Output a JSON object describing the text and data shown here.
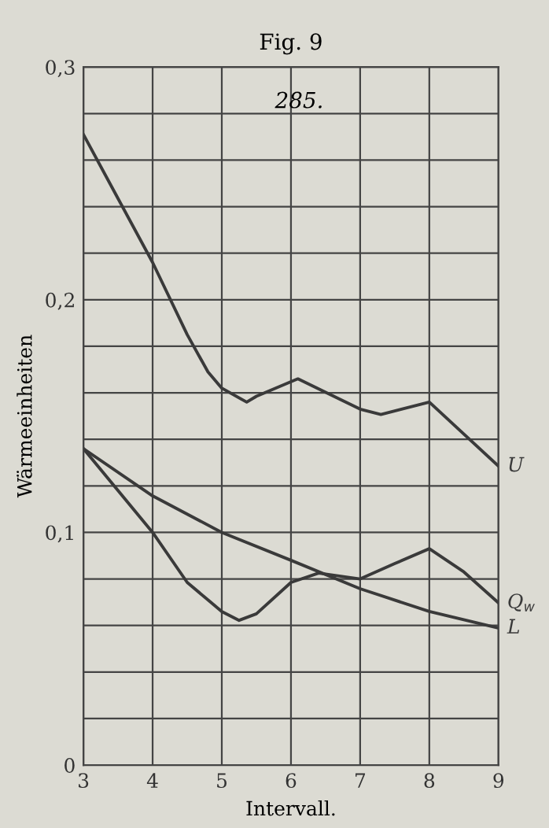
{
  "chart_data": {
    "type": "line",
    "title": "Fig. 9",
    "xlabel": "Intervall.",
    "ylabel": "Wärmeeinheiten",
    "annotations": [
      "285."
    ],
    "x": [
      3,
      3.5,
      4,
      4.5,
      4.8,
      5,
      5.36,
      5.5,
      6.1,
      7,
      7.3,
      8,
      9
    ],
    "series": [
      {
        "name": "U",
        "color": "#3a3a3a",
        "values": [
          0.271,
          0.2435,
          0.216,
          0.185,
          0.169,
          0.162,
          0.156,
          0.1585,
          0.166,
          0.153,
          0.1507,
          0.156,
          0.1285
        ]
      },
      {
        "name": "Q$_{w}$",
        "color": "#3a3a3a",
        "x": [
          3,
          4,
          4.5,
          5,
          5.25,
          5.5,
          6,
          6.4,
          7,
          7.5,
          8,
          8.5,
          9
        ],
        "values": [
          0.136,
          0.1,
          0.0785,
          0.066,
          0.0622,
          0.065,
          0.0785,
          0.0825,
          0.08,
          0.0866,
          0.093,
          0.083,
          0.0697
        ]
      },
      {
        "name": "L",
        "color": "#3a3a3a",
        "x": [
          3,
          4,
          5,
          6,
          7,
          8,
          9
        ],
        "values": [
          0.136,
          0.1157,
          0.1,
          0.088,
          0.0758,
          0.066,
          0.0589
        ]
      }
    ],
    "xlim": [
      3,
      9
    ],
    "xticks": [
      3,
      4,
      5,
      6,
      7,
      8,
      9
    ],
    "ylim": [
      0,
      0.3
    ],
    "yticks": [
      {
        "value": 0,
        "label": "0"
      },
      {
        "value": 0.02,
        "label": null
      },
      {
        "value": 0.04,
        "label": null
      },
      {
        "value": 0.06,
        "label": null
      },
      {
        "value": 0.08,
        "label": null
      },
      {
        "value": 0.1,
        "label": "0,1"
      },
      {
        "value": 0.12,
        "label": null
      },
      {
        "value": 0.14,
        "label": null
      },
      {
        "value": 0.16,
        "label": null
      },
      {
        "value": 0.18,
        "label": null
      },
      {
        "value": 0.2,
        "label": "0,2"
      },
      {
        "value": 0.22,
        "label": null
      },
      {
        "value": 0.24,
        "label": null
      },
      {
        "value": 0.26,
        "label": null
      },
      {
        "value": 0.28,
        "label": null
      },
      {
        "value": 0.3,
        "label": "0,3"
      }
    ],
    "grid": true,
    "legend": false,
    "marker": "none",
    "line_style": "solid"
  }
}
